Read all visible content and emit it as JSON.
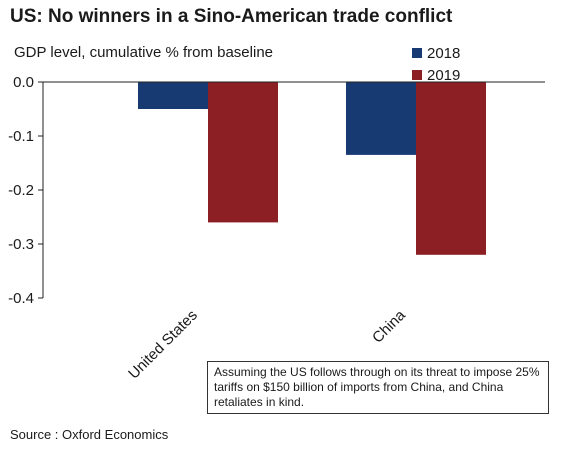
{
  "title": "US: No winners in a Sino-American trade conflict",
  "note": "Assuming the US follows through on its threat to impose 25% tariffs on $150 billion of imports from China, and China retaliates in kind.",
  "source": "Source : Oxford Economics",
  "chart_data": {
    "type": "bar",
    "title": "US: No winners in a Sino-American trade conflict",
    "subtitle": "GDP level, cumulative % from baseline",
    "xlabel": "",
    "ylabel": "",
    "categories": [
      "United States",
      "China"
    ],
    "series": [
      {
        "name": "2018",
        "color": "#173a73",
        "values": [
          -0.05,
          -0.135
        ]
      },
      {
        "name": "2019",
        "color": "#8c1f24",
        "values": [
          -0.26,
          -0.32
        ]
      }
    ],
    "ylim": [
      -0.4,
      0.0
    ],
    "yticks": [
      "0.0",
      "-0.1",
      "-0.2",
      "-0.3",
      "-0.4"
    ],
    "ytick_values": [
      0.0,
      -0.1,
      -0.2,
      -0.3,
      -0.4
    ],
    "grid": false,
    "legend_position": "top-right"
  }
}
